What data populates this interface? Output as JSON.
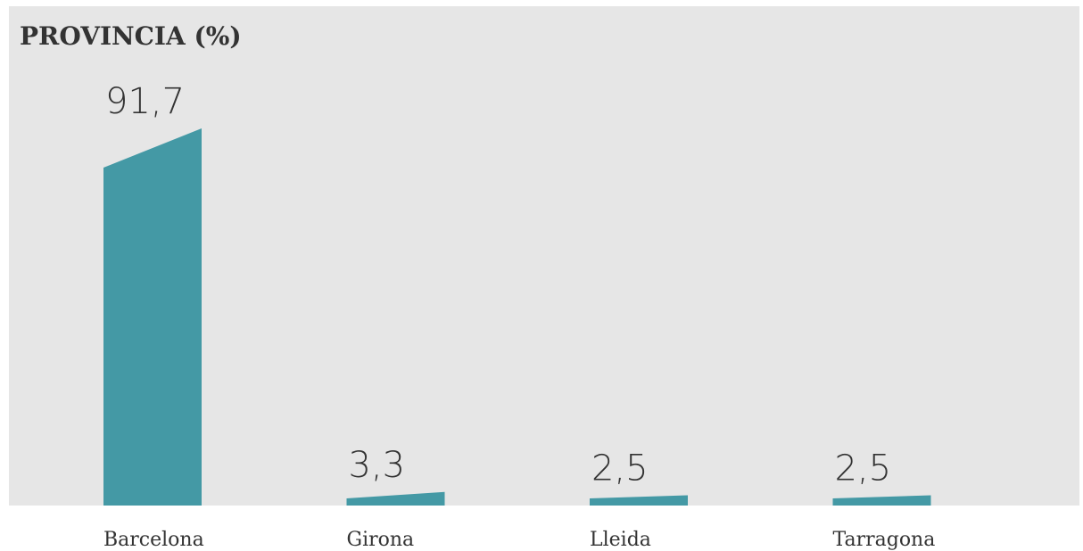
{
  "chart_data": {
    "type": "bar",
    "title": "PROVINCIA (%)",
    "categories": [
      "Barcelona",
      "Girona",
      "Lleida",
      "Tarragona"
    ],
    "values": [
      91.7,
      3.3,
      2.5,
      2.5
    ],
    "value_labels": [
      "91,7",
      "3,3",
      "2,5",
      "2,5"
    ],
    "xlabel": "",
    "ylabel": "",
    "ylim": [
      0,
      100
    ],
    "grid": false,
    "legend": "none",
    "colors": {
      "panel_background": "#e6e6e6",
      "bar": "#4499a5",
      "text": "#333333"
    }
  }
}
